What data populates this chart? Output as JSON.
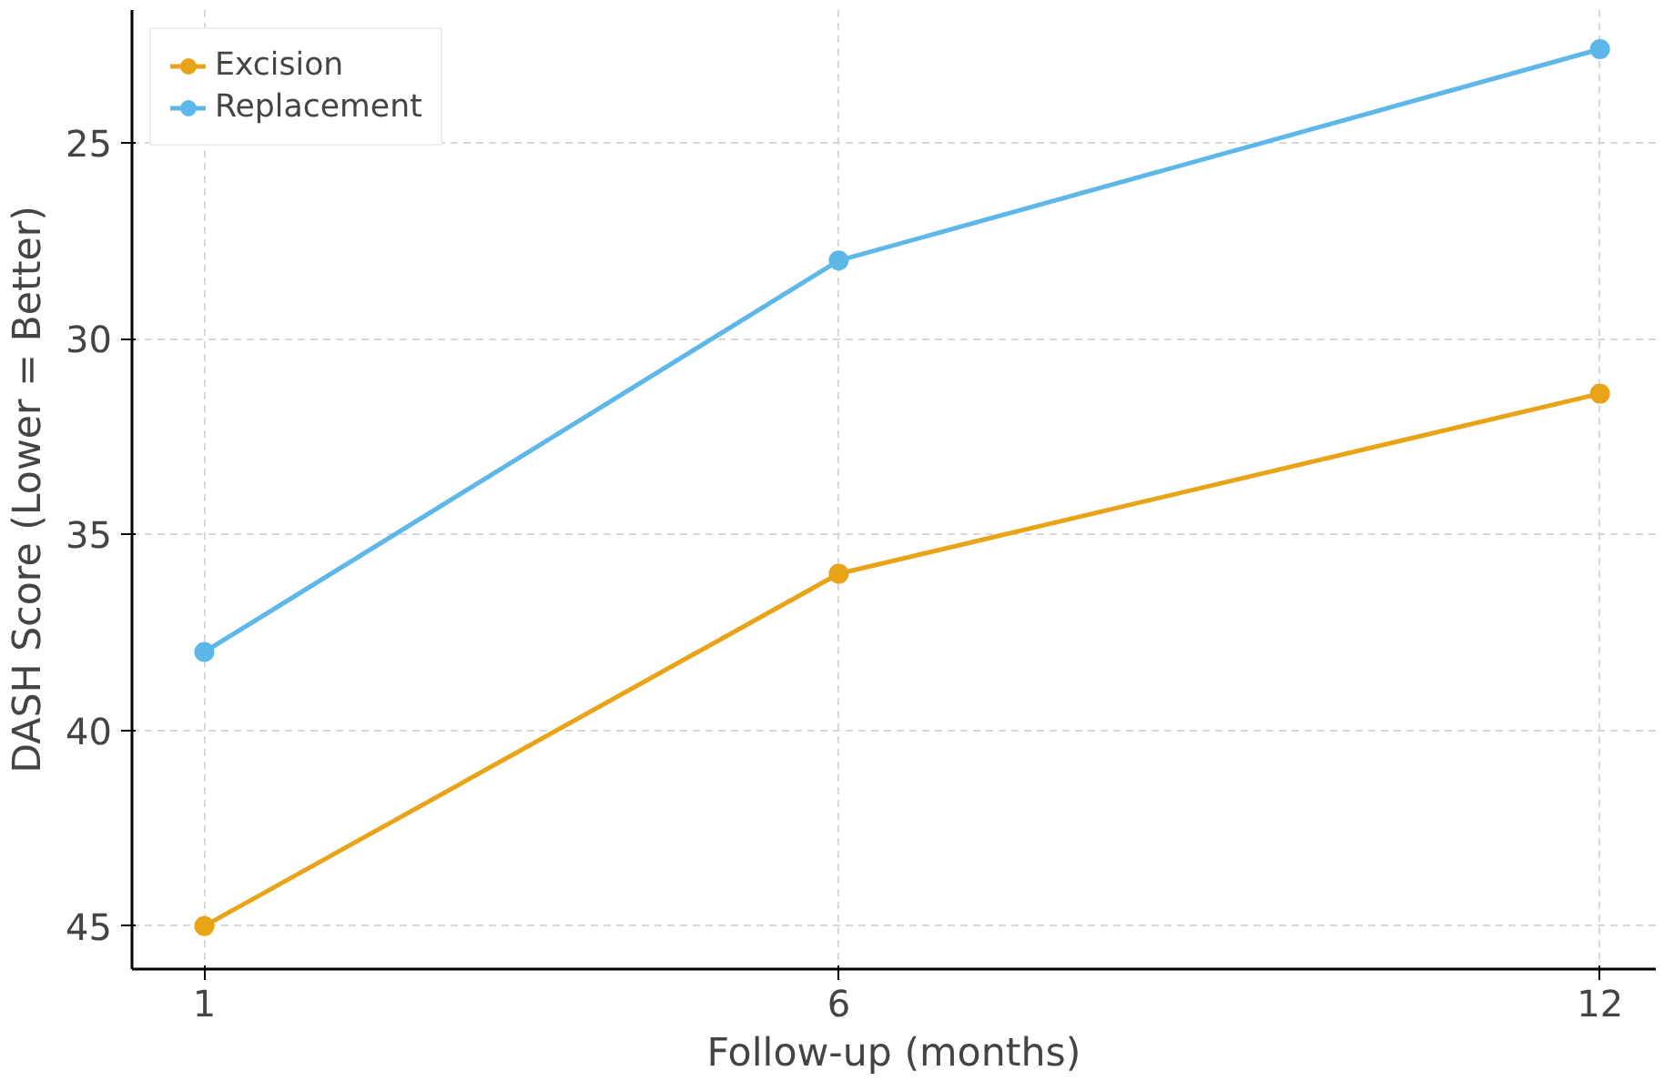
{
  "chart_data": {
    "type": "line",
    "xlabel": "Follow-up (months)",
    "ylabel": "DASH Score (Lower = Better)",
    "x": [
      1,
      6,
      12
    ],
    "series": [
      {
        "name": "Excision",
        "color": "#e8a316",
        "values": [
          45,
          36,
          31.4
        ]
      },
      {
        "name": "Replacement",
        "color": "#5db7e8",
        "values": [
          38,
          28,
          22.6
        ]
      }
    ],
    "xlim": [
      0.43,
      12.44
    ],
    "ylim": [
      46.1,
      21.6
    ],
    "xticks": [
      1,
      6,
      12
    ],
    "yticks": [
      25,
      30,
      35,
      40,
      45
    ],
    "grid": true,
    "legend": "top left",
    "marker": "circle",
    "line_style": "solid"
  }
}
